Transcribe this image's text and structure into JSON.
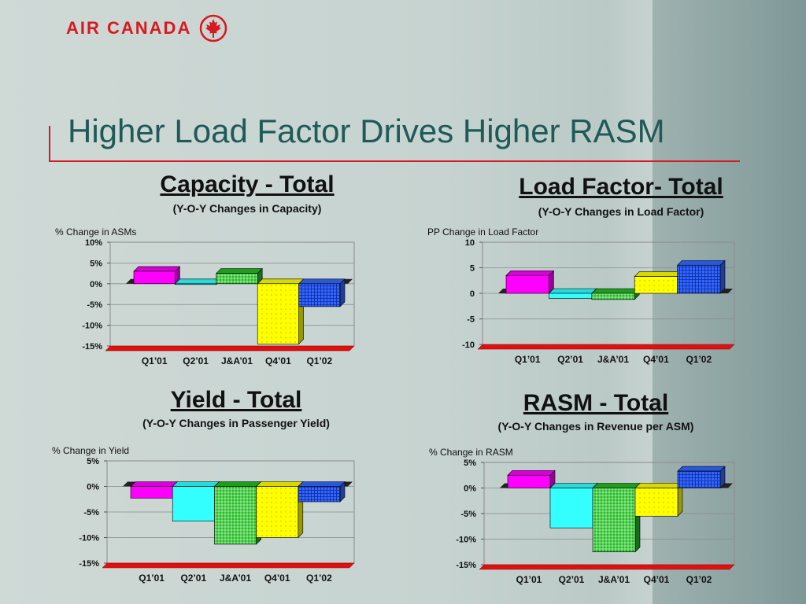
{
  "header": {
    "logo_text": "AIR CANADA",
    "title": "Higher Load Factor Drives Higher RASM"
  },
  "colors": {
    "brand_red": "#d71920",
    "title_teal": "#1f5a58"
  },
  "chart_data": [
    {
      "type": "bar",
      "title": "Capacity - Total",
      "subtitle": "(Y-O-Y Changes in Capacity)",
      "ylabel": "% Change in ASMs",
      "categories": [
        "Q1’01",
        "Q2’01",
        "J&A’01",
        "Q4’01",
        "Q1’02"
      ],
      "values": [
        3,
        0,
        2.5,
        -14.5,
        -5.5
      ],
      "ylim": [
        -15,
        10
      ],
      "yticks": [
        10,
        5,
        0,
        -5,
        -10,
        -15
      ],
      "ytick_labels": [
        "10%",
        "5%",
        "0%",
        "-5%",
        "-10%",
        "-15%"
      ],
      "colors": [
        "#ff00ff",
        "#33ffff",
        "#22bb22",
        "#ffff00",
        "#3366ff"
      ],
      "grid": true
    },
    {
      "type": "bar",
      "title": "Load Factor- Total",
      "subtitle": "(Y-O-Y Changes in Load Factor)",
      "ylabel": "PP Change in Load Factor",
      "categories": [
        "Q1’01",
        "Q2’01",
        "J&A’01",
        "Q4’01",
        "Q1’02"
      ],
      "values": [
        3.5,
        -1,
        -1.2,
        3.3,
        5.5
      ],
      "ylim": [
        -10,
        10
      ],
      "yticks": [
        10,
        5,
        0,
        -5,
        -10
      ],
      "ytick_labels": [
        "10",
        "5",
        "0",
        "-5",
        "-10"
      ],
      "colors": [
        "#ff00ff",
        "#33ffff",
        "#22bb22",
        "#ffff00",
        "#3366ff"
      ],
      "grid": true
    },
    {
      "type": "bar",
      "title": "Yield - Total",
      "subtitle": "(Y-O-Y Changes in Passenger Yield)",
      "ylabel": "% Change in Yield",
      "categories": [
        "Q1’01",
        "Q2’01",
        "J&A’01",
        "Q4’01",
        "Q1’02"
      ],
      "values": [
        -2.3,
        -6.8,
        -11.3,
        -10,
        -3
      ],
      "ylim": [
        -15,
        5
      ],
      "yticks": [
        5,
        0,
        -5,
        -10,
        -15
      ],
      "ytick_labels": [
        "5%",
        "0%",
        "-5%",
        "-10%",
        "-15%"
      ],
      "colors": [
        "#ff00ff",
        "#33ffff",
        "#22bb22",
        "#ffff00",
        "#3366ff"
      ],
      "grid": true
    },
    {
      "type": "bar",
      "title": "RASM - Total",
      "subtitle": "(Y-O-Y Changes in Revenue per ASM)",
      "ylabel": "% Change in RASM",
      "categories": [
        "Q1’01",
        "Q2’01",
        "J&A’01",
        "Q4’01",
        "Q1’02"
      ],
      "values": [
        2.5,
        -7.8,
        -12.5,
        -5.5,
        3.3
      ],
      "ylim": [
        -15,
        5
      ],
      "yticks": [
        5,
        0,
        -5,
        -10,
        -15
      ],
      "ytick_labels": [
        "5%",
        "0%",
        "-5%",
        "-10%",
        "-15%"
      ],
      "colors": [
        "#ff00ff",
        "#33ffff",
        "#22bb22",
        "#ffff00",
        "#3366ff"
      ],
      "grid": true
    }
  ]
}
